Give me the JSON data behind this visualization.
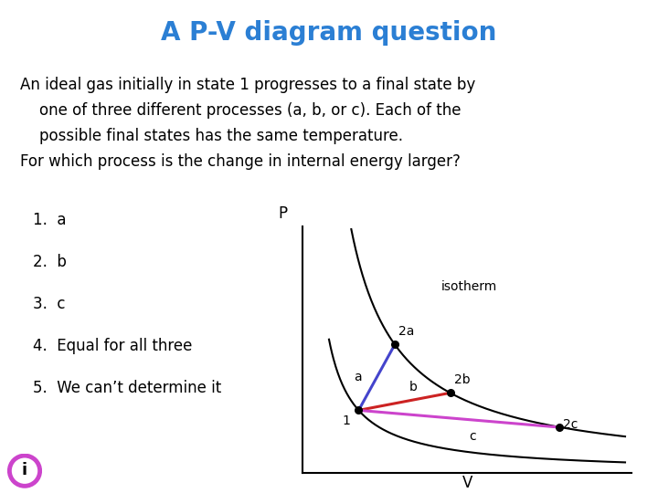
{
  "title": "A P-V diagram question",
  "title_color": "#2B7FD4",
  "title_fontsize": 20,
  "bg_color": "#ffffff",
  "body_text_line1": "An ideal gas initially in state 1 progresses to a final state by",
  "body_text_line2": "    one of three different processes (a, b, or c). Each of the",
  "body_text_line3": "    possible final states has the same temperature.",
  "body_text_line4": "For which process is the change in internal energy larger?",
  "choices": [
    "1.  a",
    "2.  b",
    "3.  c",
    "4.  Equal for all three",
    "5.  We can’t determine it"
  ],
  "body_fontsize": 12,
  "choices_fontsize": 12,
  "diagram_xlabel": "V",
  "diagram_ylabel": "P",
  "diagram_label_isotherm": "isotherm",
  "point1_label": "1",
  "point2a_label": "2a",
  "point2b_label": "2b",
  "point2c_label": "2c",
  "label_a": "a",
  "label_b": "b",
  "label_c": "c",
  "color_a": "#4444cc",
  "color_b": "#cc2222",
  "color_c": "#cc44cc",
  "color_isotherm": "#000000",
  "color_points": "#000000",
  "info_icon_color": "#cc44cc"
}
